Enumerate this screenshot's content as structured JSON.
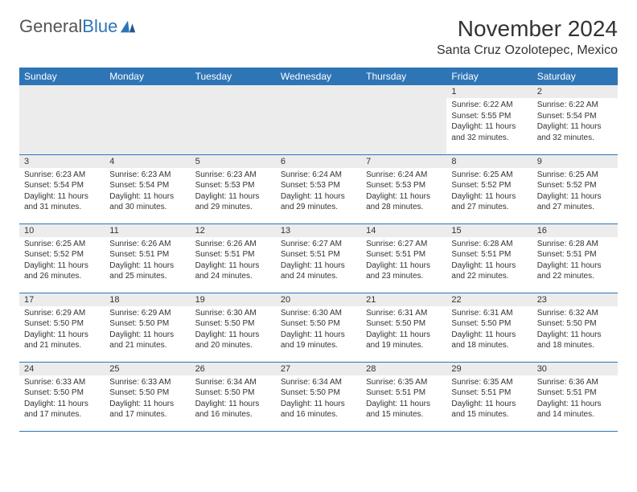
{
  "logo": {
    "text1": "General",
    "text2": "Blue"
  },
  "title": "November 2024",
  "location": "Santa Cruz Ozolotepec, Mexico",
  "colors": {
    "header_bg": "#2e75b6",
    "header_text": "#ffffff",
    "daynum_bg": "#ececec",
    "border": "#2e75b6",
    "text": "#333333",
    "background": "#ffffff"
  },
  "typography": {
    "title_fontsize": 28,
    "location_fontsize": 16,
    "weekday_fontsize": 12,
    "daynum_fontsize": 11,
    "body_fontsize": 10
  },
  "weekdays": [
    "Sunday",
    "Monday",
    "Tuesday",
    "Wednesday",
    "Thursday",
    "Friday",
    "Saturday"
  ],
  "weeks": [
    [
      null,
      null,
      null,
      null,
      null,
      {
        "day": "1",
        "sunrise": "Sunrise: 6:22 AM",
        "sunset": "Sunset: 5:55 PM",
        "daylight": "Daylight: 11 hours and 32 minutes."
      },
      {
        "day": "2",
        "sunrise": "Sunrise: 6:22 AM",
        "sunset": "Sunset: 5:54 PM",
        "daylight": "Daylight: 11 hours and 32 minutes."
      }
    ],
    [
      {
        "day": "3",
        "sunrise": "Sunrise: 6:23 AM",
        "sunset": "Sunset: 5:54 PM",
        "daylight": "Daylight: 11 hours and 31 minutes."
      },
      {
        "day": "4",
        "sunrise": "Sunrise: 6:23 AM",
        "sunset": "Sunset: 5:54 PM",
        "daylight": "Daylight: 11 hours and 30 minutes."
      },
      {
        "day": "5",
        "sunrise": "Sunrise: 6:23 AM",
        "sunset": "Sunset: 5:53 PM",
        "daylight": "Daylight: 11 hours and 29 minutes."
      },
      {
        "day": "6",
        "sunrise": "Sunrise: 6:24 AM",
        "sunset": "Sunset: 5:53 PM",
        "daylight": "Daylight: 11 hours and 29 minutes."
      },
      {
        "day": "7",
        "sunrise": "Sunrise: 6:24 AM",
        "sunset": "Sunset: 5:53 PM",
        "daylight": "Daylight: 11 hours and 28 minutes."
      },
      {
        "day": "8",
        "sunrise": "Sunrise: 6:25 AM",
        "sunset": "Sunset: 5:52 PM",
        "daylight": "Daylight: 11 hours and 27 minutes."
      },
      {
        "day": "9",
        "sunrise": "Sunrise: 6:25 AM",
        "sunset": "Sunset: 5:52 PM",
        "daylight": "Daylight: 11 hours and 27 minutes."
      }
    ],
    [
      {
        "day": "10",
        "sunrise": "Sunrise: 6:25 AM",
        "sunset": "Sunset: 5:52 PM",
        "daylight": "Daylight: 11 hours and 26 minutes."
      },
      {
        "day": "11",
        "sunrise": "Sunrise: 6:26 AM",
        "sunset": "Sunset: 5:51 PM",
        "daylight": "Daylight: 11 hours and 25 minutes."
      },
      {
        "day": "12",
        "sunrise": "Sunrise: 6:26 AM",
        "sunset": "Sunset: 5:51 PM",
        "daylight": "Daylight: 11 hours and 24 minutes."
      },
      {
        "day": "13",
        "sunrise": "Sunrise: 6:27 AM",
        "sunset": "Sunset: 5:51 PM",
        "daylight": "Daylight: 11 hours and 24 minutes."
      },
      {
        "day": "14",
        "sunrise": "Sunrise: 6:27 AM",
        "sunset": "Sunset: 5:51 PM",
        "daylight": "Daylight: 11 hours and 23 minutes."
      },
      {
        "day": "15",
        "sunrise": "Sunrise: 6:28 AM",
        "sunset": "Sunset: 5:51 PM",
        "daylight": "Daylight: 11 hours and 22 minutes."
      },
      {
        "day": "16",
        "sunrise": "Sunrise: 6:28 AM",
        "sunset": "Sunset: 5:51 PM",
        "daylight": "Daylight: 11 hours and 22 minutes."
      }
    ],
    [
      {
        "day": "17",
        "sunrise": "Sunrise: 6:29 AM",
        "sunset": "Sunset: 5:50 PM",
        "daylight": "Daylight: 11 hours and 21 minutes."
      },
      {
        "day": "18",
        "sunrise": "Sunrise: 6:29 AM",
        "sunset": "Sunset: 5:50 PM",
        "daylight": "Daylight: 11 hours and 21 minutes."
      },
      {
        "day": "19",
        "sunrise": "Sunrise: 6:30 AM",
        "sunset": "Sunset: 5:50 PM",
        "daylight": "Daylight: 11 hours and 20 minutes."
      },
      {
        "day": "20",
        "sunrise": "Sunrise: 6:30 AM",
        "sunset": "Sunset: 5:50 PM",
        "daylight": "Daylight: 11 hours and 19 minutes."
      },
      {
        "day": "21",
        "sunrise": "Sunrise: 6:31 AM",
        "sunset": "Sunset: 5:50 PM",
        "daylight": "Daylight: 11 hours and 19 minutes."
      },
      {
        "day": "22",
        "sunrise": "Sunrise: 6:31 AM",
        "sunset": "Sunset: 5:50 PM",
        "daylight": "Daylight: 11 hours and 18 minutes."
      },
      {
        "day": "23",
        "sunrise": "Sunrise: 6:32 AM",
        "sunset": "Sunset: 5:50 PM",
        "daylight": "Daylight: 11 hours and 18 minutes."
      }
    ],
    [
      {
        "day": "24",
        "sunrise": "Sunrise: 6:33 AM",
        "sunset": "Sunset: 5:50 PM",
        "daylight": "Daylight: 11 hours and 17 minutes."
      },
      {
        "day": "25",
        "sunrise": "Sunrise: 6:33 AM",
        "sunset": "Sunset: 5:50 PM",
        "daylight": "Daylight: 11 hours and 17 minutes."
      },
      {
        "day": "26",
        "sunrise": "Sunrise: 6:34 AM",
        "sunset": "Sunset: 5:50 PM",
        "daylight": "Daylight: 11 hours and 16 minutes."
      },
      {
        "day": "27",
        "sunrise": "Sunrise: 6:34 AM",
        "sunset": "Sunset: 5:50 PM",
        "daylight": "Daylight: 11 hours and 16 minutes."
      },
      {
        "day": "28",
        "sunrise": "Sunrise: 6:35 AM",
        "sunset": "Sunset: 5:51 PM",
        "daylight": "Daylight: 11 hours and 15 minutes."
      },
      {
        "day": "29",
        "sunrise": "Sunrise: 6:35 AM",
        "sunset": "Sunset: 5:51 PM",
        "daylight": "Daylight: 11 hours and 15 minutes."
      },
      {
        "day": "30",
        "sunrise": "Sunrise: 6:36 AM",
        "sunset": "Sunset: 5:51 PM",
        "daylight": "Daylight: 11 hours and 14 minutes."
      }
    ]
  ]
}
